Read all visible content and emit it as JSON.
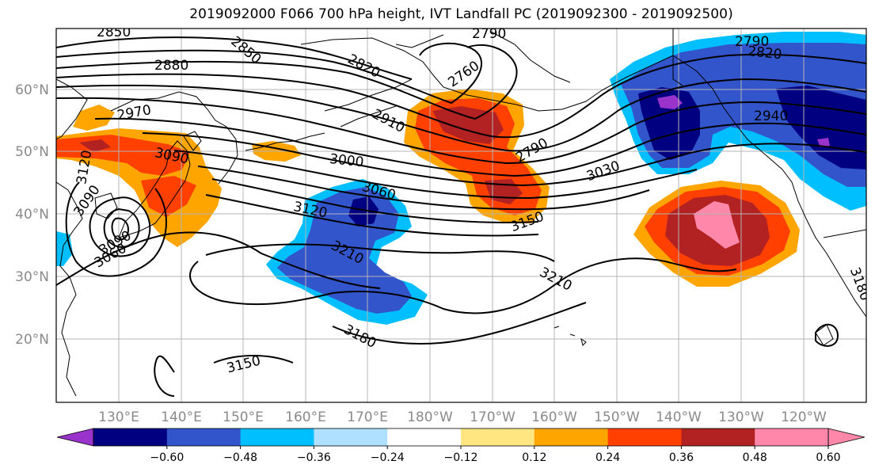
{
  "title": "2019092000 F066 700 hPa height, IVT Landfall PC (2019092300 - 2019092500)",
  "latitude_labels": [
    "20°N",
    "30°N",
    "40°N",
    "50°N",
    "60°N"
  ],
  "longitude_labels": [
    "130°E",
    "140°E",
    "150°E",
    "160°E",
    "170°E",
    "180°W",
    "170°W",
    "160°W",
    "150°W",
    "140°W",
    "130°W",
    "120°W"
  ],
  "colorbar": {
    "labels": [
      "−0.60",
      "−0.48",
      "−0.36",
      "−0.24",
      "−0.12",
      "0.12",
      "0.24",
      "0.36",
      "0.48",
      "0.60"
    ],
    "colors": [
      "#9933cc",
      "#000080",
      "#3355cc",
      "#00bfff",
      "#b0e0ff",
      "#ffffff",
      "#ffe680",
      "#ffa500",
      "#ff4000",
      "#b22222",
      "#ff88aa",
      "#ff88aa"
    ]
  },
  "contour_labels": [
    "2850",
    "2850",
    "2790",
    "2880",
    "2820",
    "2760",
    "2970",
    "2910",
    "2790",
    "2820",
    "2790",
    "2940",
    "3090",
    "3000",
    "3060",
    "3030",
    "3120",
    "3150",
    "3120",
    "3090",
    "3060",
    "3090",
    "3210",
    "3210",
    "3180",
    "3150",
    "3180"
  ],
  "fill_colors": {
    "orange": "#ffa500",
    "red": "#ff4000",
    "darkred": "#b22222",
    "pink": "#ff88aa",
    "cyan": "#00bfff",
    "blue": "#3355cc",
    "navy": "#000080",
    "purple": "#9933cc"
  }
}
